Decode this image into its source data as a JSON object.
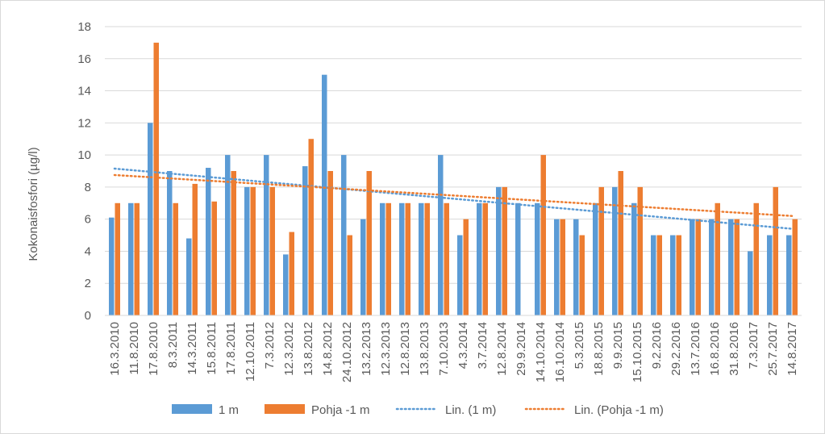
{
  "chart_data": {
    "type": "bar",
    "title": "",
    "xlabel": "",
    "ylabel": "Kokonaisfosfori (µg/l)",
    "ylim": [
      0,
      18
    ],
    "yticks": [
      0,
      2,
      4,
      6,
      8,
      10,
      12,
      14,
      16,
      18
    ],
    "grid": true,
    "legend_position": "bottom",
    "categories": [
      "16.3.2010",
      "11.8.2010",
      "17.8.2010",
      "8.3.2011",
      "14.3.2011",
      "15.8.2011",
      "17.8.2011",
      "12.10.2011",
      "7.3.2012",
      "12.3.2012",
      "13.8.2012",
      "14.8.2012",
      "24.10.2012",
      "13.2.2013",
      "12.3.2013",
      "12.8.2013",
      "13.8.2013",
      "7.10.2013",
      "4.3.2014",
      "3.7.2014",
      "12.8.2014",
      "29.9.2014",
      "14.10.2014",
      "16.10.2014",
      "5.3.2015",
      "18.8.2015",
      "9.9.2015",
      "15.10.2015",
      "9.2.2016",
      "29.2.2016",
      "13.7.2016",
      "16.8.2016",
      "31.8.2016",
      "7.3.2017",
      "25.7.2017",
      "14.8.2017"
    ],
    "series": [
      {
        "name": "1 m",
        "color": "#5b9bd5",
        "values": [
          6.1,
          7,
          12,
          9,
          4.8,
          9.2,
          10,
          8,
          10,
          3.8,
          9.3,
          15,
          10,
          6,
          7,
          7,
          7,
          10,
          5,
          7,
          8,
          7,
          7,
          6,
          6,
          7,
          8,
          7,
          5,
          5,
          6,
          6,
          6,
          4,
          5,
          5
        ]
      },
      {
        "name": "Pohja -1 m",
        "color": "#ed7d31",
        "values": [
          7,
          7,
          17,
          7,
          8.2,
          7.1,
          9,
          8,
          8,
          5.2,
          11,
          9,
          5,
          9,
          7,
          7,
          7,
          7,
          6,
          7,
          8,
          null,
          10,
          6,
          5,
          8,
          9,
          8,
          5,
          5,
          6,
          7,
          6,
          7,
          8,
          6
        ]
      }
    ],
    "trendlines": [
      {
        "name": "Lin. (1 m)",
        "color": "#5b9bd5",
        "start": 9.15,
        "end": 5.4
      },
      {
        "name": "Lin. (Pohja -1 m)",
        "color": "#ed7d31",
        "start": 8.75,
        "end": 6.2
      }
    ],
    "legend": [
      "1 m",
      "Pohja -1 m",
      "Lin. (1 m)",
      "Lin. (Pohja -1 m)"
    ]
  }
}
